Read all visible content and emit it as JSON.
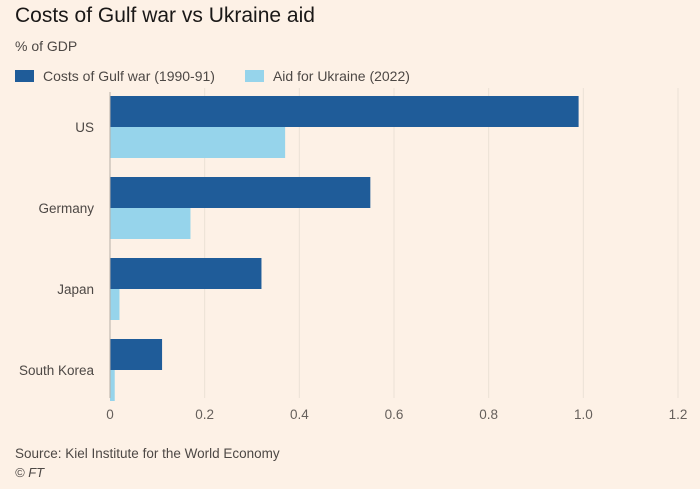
{
  "chart_data": {
    "type": "bar",
    "orientation": "horizontal",
    "title": "Costs of Gulf war vs Ukraine aid",
    "subtitle": "% of GDP",
    "categories": [
      "US",
      "Germany",
      "Japan",
      "South Korea"
    ],
    "series": [
      {
        "name": "Costs of Gulf war (1990-91)",
        "color": "#1f5c99",
        "values": [
          0.99,
          0.55,
          0.32,
          0.11
        ]
      },
      {
        "name": "Aid for Ukraine (2022)",
        "color": "#96d4eb",
        "values": [
          0.37,
          0.17,
          0.02,
          0.01
        ]
      }
    ],
    "xlim": [
      0,
      1.2
    ],
    "xticks": [
      "0",
      "0.2",
      "0.4",
      "0.6",
      "0.8",
      "1.0",
      "1.2"
    ],
    "xtick_values": [
      0,
      0.2,
      0.4,
      0.6,
      0.8,
      1.0,
      1.2
    ],
    "grid": true,
    "legend_position": "top-left"
  },
  "footer": {
    "source": "Source: Kiel Institute for the World Economy",
    "credit": "© FT"
  }
}
